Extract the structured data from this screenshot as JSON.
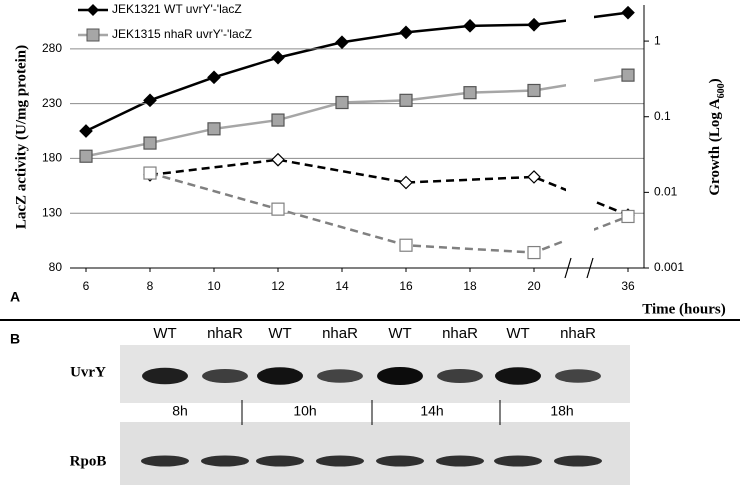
{
  "chart_data": {
    "type": "line",
    "panel_label": "A",
    "xlabel": "Time (hours)",
    "ylabel": "LacZ activity (U/mg protein)",
    "y2label": "Growth (Log A",
    "y2label_sub": "600",
    "y2label_end": ")",
    "xlim": [
      5.5,
      36.5
    ],
    "xticks": [
      6,
      8,
      10,
      12,
      14,
      16,
      18,
      20,
      36
    ],
    "x_break": [
      21,
      34
    ],
    "ylim": [
      80,
      320
    ],
    "yticks": [
      80,
      130,
      180,
      230,
      280
    ],
    "y2lim": [
      0.001,
      3
    ],
    "y2ticks": [
      0.001,
      0.01,
      0.1,
      1
    ],
    "y2scale": "log",
    "grid": true,
    "legend": "upper left",
    "series": [
      {
        "name": "JEK1321 WT uvrY'-'lacZ",
        "color": "#000000",
        "marker": "diamond",
        "filled": true,
        "dashed": false,
        "x": [
          6,
          8,
          10,
          12,
          14,
          16,
          18,
          20,
          36
        ],
        "values": [
          205,
          233,
          254,
          272,
          286,
          295,
          301,
          302,
          313
        ]
      },
      {
        "name": "JEK1315 nhaR uvrY'-'lacZ",
        "color": "#a6a6a6",
        "marker": "square",
        "filled": true,
        "dashed": false,
        "x": [
          6,
          8,
          10,
          12,
          14,
          16,
          18,
          20,
          36
        ],
        "values": [
          182,
          194,
          207,
          215,
          231,
          233,
          240,
          242,
          256
        ]
      },
      {
        "color": "#000000",
        "marker": "diamond",
        "filled": false,
        "dashed": true,
        "axis": "y2",
        "x": [
          8,
          12,
          16,
          20,
          36
        ],
        "values": [
          0.017,
          0.027,
          0.0135,
          0.016,
          0.005
        ]
      },
      {
        "color": "#808080",
        "marker": "square",
        "filled": false,
        "dashed": true,
        "axis": "y2",
        "x": [
          8,
          12,
          16,
          20,
          36
        ],
        "values": [
          0.018,
          0.006,
          0.002,
          0.0016,
          0.0048
        ]
      }
    ]
  },
  "blot": {
    "panel_label": "B",
    "lanes": [
      "WT",
      "nhaR",
      "WT",
      "nhaR",
      "WT",
      "nhaR",
      "WT",
      "nhaR"
    ],
    "times": [
      "8h",
      "10h",
      "14h",
      "18h"
    ],
    "rows": [
      "UvrY",
      "RpoB"
    ]
  }
}
